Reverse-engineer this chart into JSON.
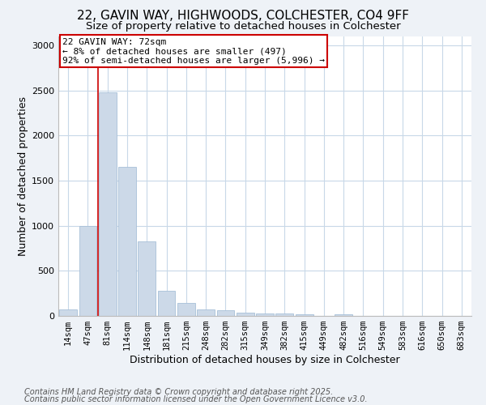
{
  "title_line1": "22, GAVIN WAY, HIGHWOODS, COLCHESTER, CO4 9FF",
  "title_line2": "Size of property relative to detached houses in Colchester",
  "xlabel": "Distribution of detached houses by size in Colchester",
  "ylabel": "Number of detached properties",
  "footnote1": "Contains HM Land Registry data © Crown copyright and database right 2025.",
  "footnote2": "Contains public sector information licensed under the Open Government Licence v3.0.",
  "bar_labels": [
    "14sqm",
    "47sqm",
    "81sqm",
    "114sqm",
    "148sqm",
    "181sqm",
    "215sqm",
    "248sqm",
    "282sqm",
    "315sqm",
    "349sqm",
    "382sqm",
    "415sqm",
    "449sqm",
    "482sqm",
    "516sqm",
    "549sqm",
    "583sqm",
    "616sqm",
    "650sqm",
    "683sqm"
  ],
  "bar_values": [
    75,
    1000,
    2480,
    1650,
    830,
    280,
    140,
    75,
    60,
    40,
    30,
    25,
    15,
    3,
    20,
    2,
    1,
    1,
    0,
    0,
    0
  ],
  "bar_color": "#ccd9e8",
  "bar_edge_color": "#a8c0d8",
  "vline_x_index": 1.5,
  "vline_color": "#cc0000",
  "annotation_text": "22 GAVIN WAY: 72sqm\n← 8% of detached houses are smaller (497)\n92% of semi-detached houses are larger (5,996) →",
  "annotation_box_color": "#ffffff",
  "annotation_box_edge": "#cc0000",
  "ylim": [
    0,
    3100
  ],
  "yticks": [
    0,
    500,
    1000,
    1500,
    2000,
    2500,
    3000
  ],
  "bg_color": "#eef2f7",
  "plot_bg_color": "#ffffff",
  "grid_color": "#c8d8e8",
  "title_fontsize": 11,
  "subtitle_fontsize": 9.5,
  "axis_label_fontsize": 9,
  "tick_fontsize": 7.5,
  "annotation_fontsize": 8,
  "footnote_fontsize": 7
}
